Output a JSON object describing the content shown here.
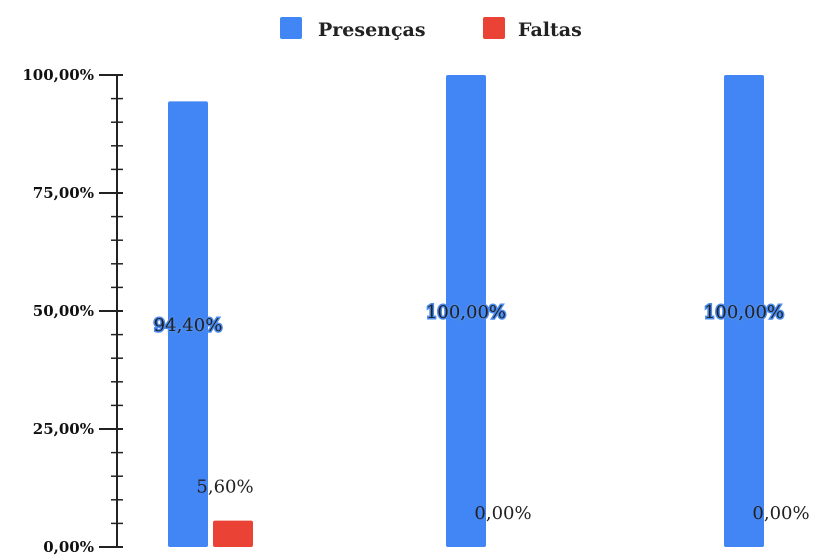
{
  "chart_data": {
    "type": "bar",
    "categories": [
      "",
      "",
      ""
    ],
    "series": [
      {
        "name": "Presenças",
        "values": [
          94.4,
          100.0,
          100.0
        ],
        "color": "#4285f4"
      },
      {
        "name": "Faltas",
        "values": [
          5.6,
          0.0,
          0.0
        ],
        "color": "#ea4335"
      }
    ],
    "data_labels": {
      "Presenças": [
        "94,40%",
        "100,00%",
        "100,00%"
      ],
      "Faltas": [
        "5,60%",
        "0,00%",
        "0,00%"
      ]
    },
    "ytick_labels": [
      "0,00%",
      "25,00%",
      "50,00%",
      "75,00%",
      "100,00%"
    ],
    "ylim": [
      0,
      100
    ],
    "legend_position": "top",
    "title": "",
    "xlabel": "",
    "ylabel": ""
  }
}
